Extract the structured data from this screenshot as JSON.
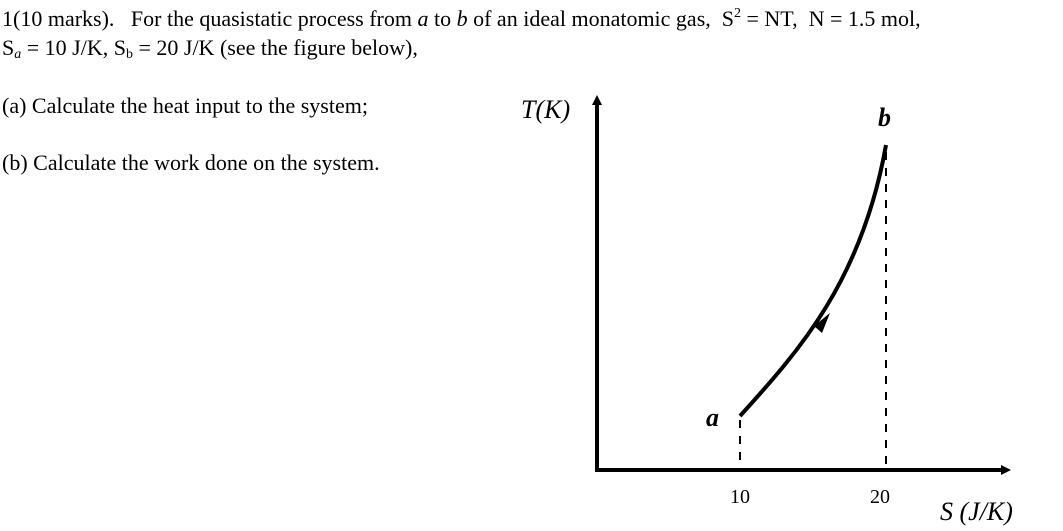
{
  "problem": {
    "number": "1(10 marks).",
    "line1": [
      "For the quasistatic process from ",
      "a",
      " to ",
      "b",
      " of an ideal monatomic gas,  S",
      "2",
      " = NT,  N = 1.5 mol,"
    ],
    "line2": [
      "S",
      "a",
      " = 10 J/K, S",
      "b",
      " = 20 J/K (see the figure below),"
    ],
    "parts": [
      "(a) Calculate the heat input to the system;",
      "(b) Calculate the work done on the system."
    ]
  },
  "figure": {
    "y_label": "T(K)",
    "x_label": "S (J/K)",
    "point_a": "a",
    "point_b": "b",
    "x_tick_a": "10",
    "x_tick_b": "20"
  }
}
